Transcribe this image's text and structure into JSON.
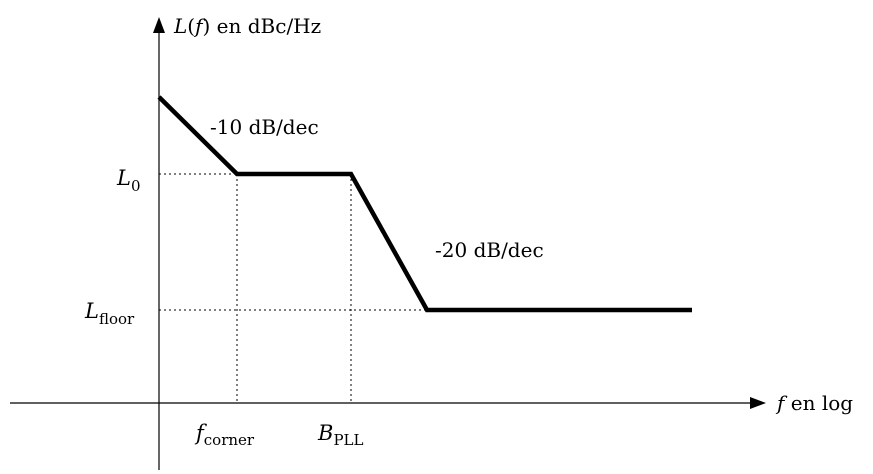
{
  "diagram": {
    "y_axis_label": {
      "main": "L",
      "paren_open": "(",
      "var": "f",
      "paren_close": ")",
      "suffix": " en dBc/Hz"
    },
    "x_axis_label": {
      "var": "f",
      "suffix": " en log"
    },
    "slope_1": "-10 dB/dec",
    "slope_2": "-20 dB/dec",
    "level_L0": {
      "main": "L",
      "sub": "0"
    },
    "level_Lfloor": {
      "main": "L",
      "sub": "floor"
    },
    "freq_corner": {
      "main": "f",
      "sub": "corner"
    },
    "freq_pll": {
      "main": "B",
      "sub": "PLL"
    }
  }
}
